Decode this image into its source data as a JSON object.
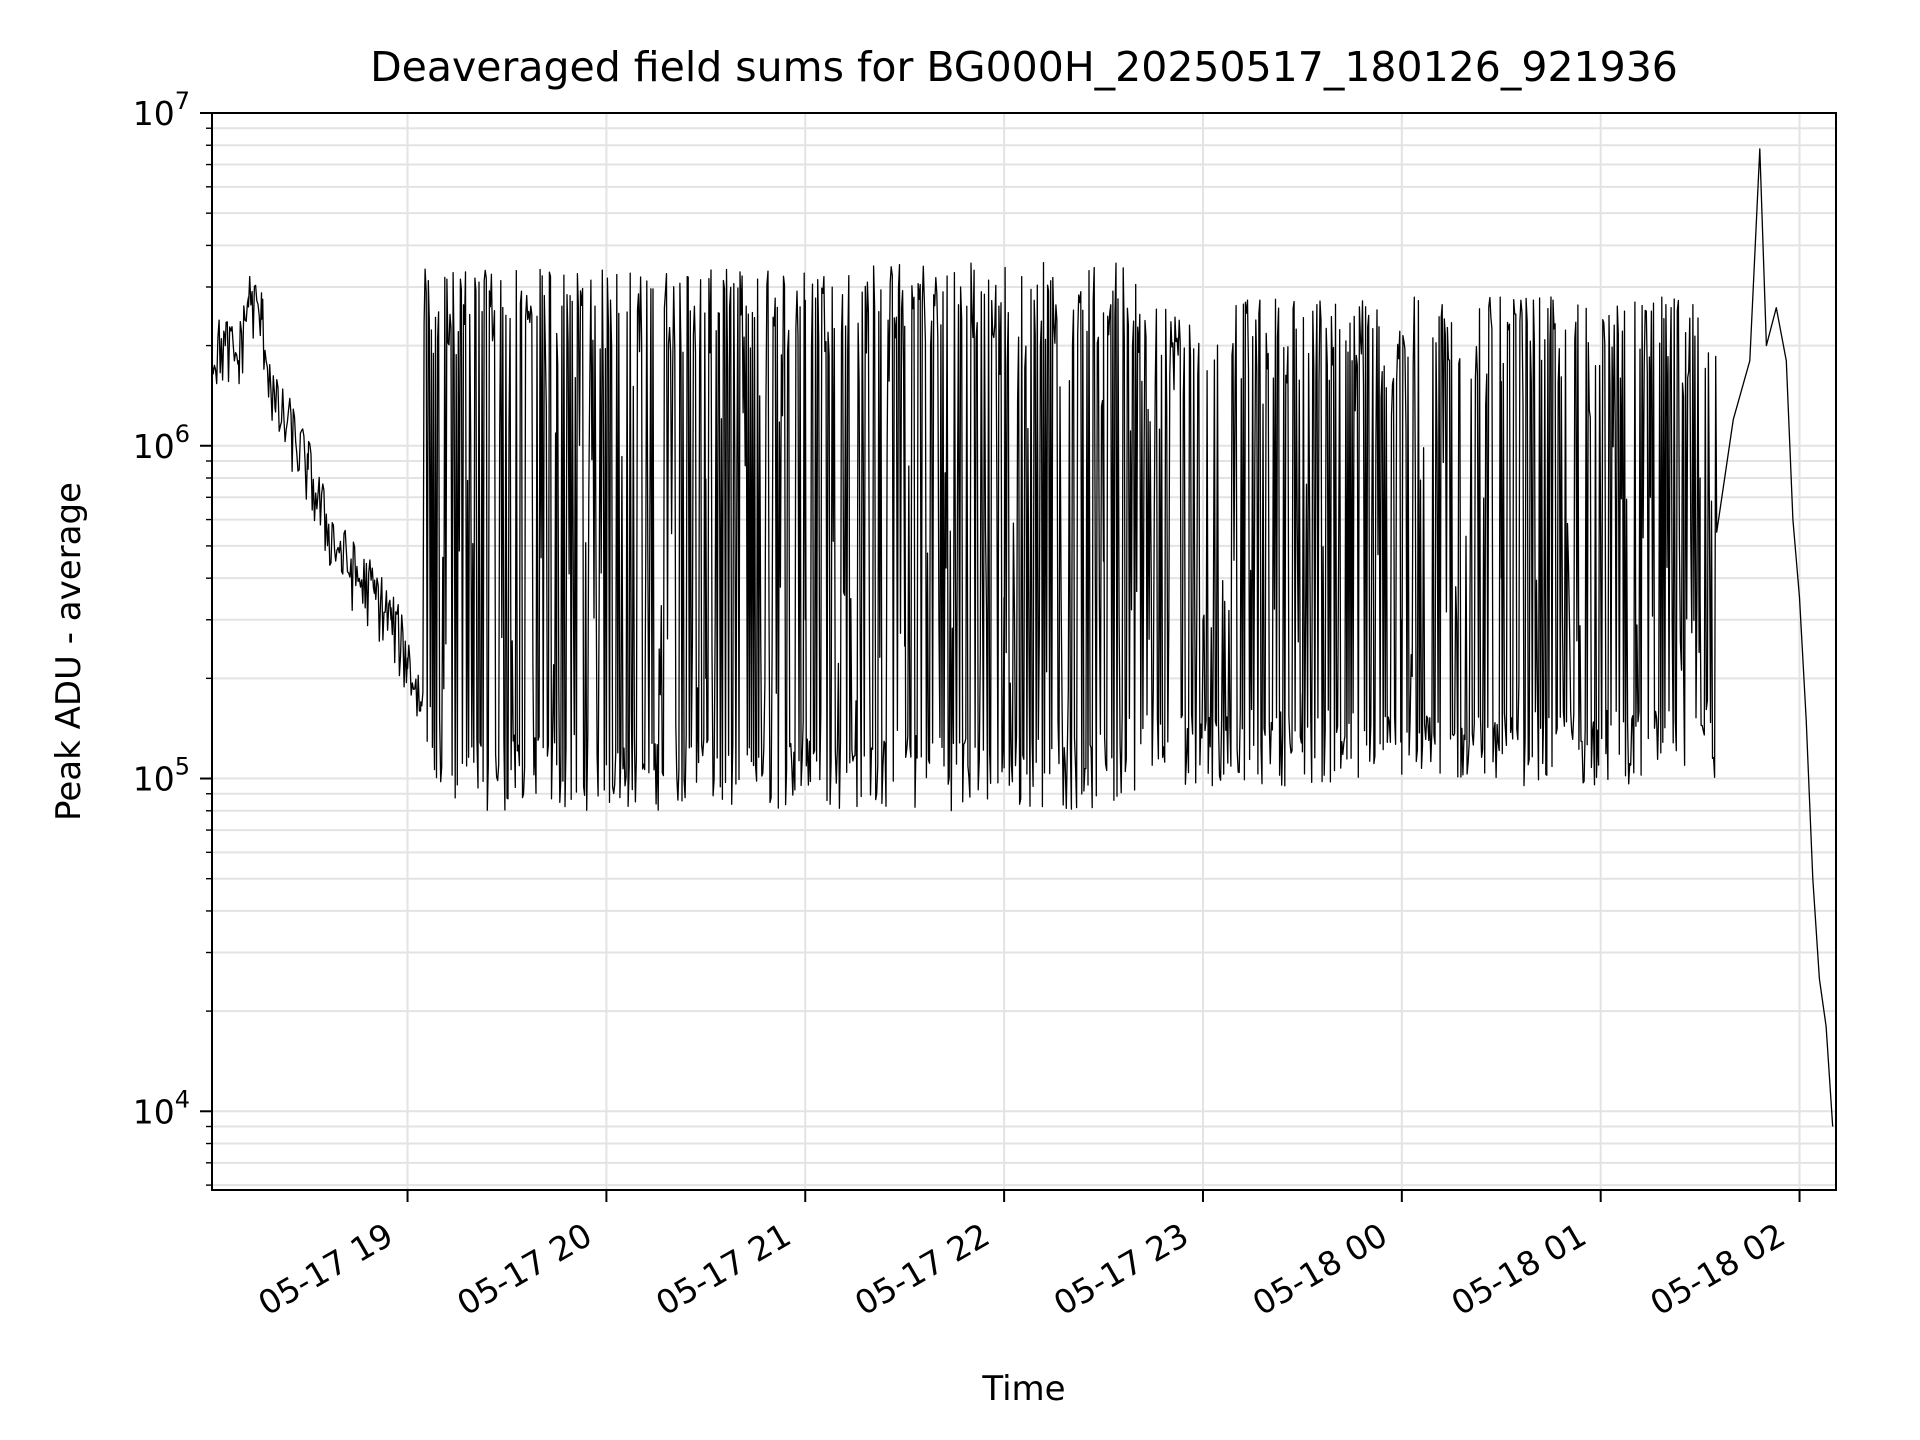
{
  "chart_data": {
    "type": "line",
    "title": "Deaveraged field sums for BG000H_20250517_180126_921936",
    "xlabel": "Time",
    "ylabel": "Peak ADU - average",
    "yscale": "log",
    "ylim": [
      5800,
      10000000
    ],
    "xlim": [
      "2025-05-17 18:01",
      "2025-05-18 02:11"
    ],
    "grid": true,
    "line_color": "#000000",
    "x_ticks": [
      {
        "value": "2025-05-17 19:00",
        "label": "05-17 19"
      },
      {
        "value": "2025-05-17 20:00",
        "label": "05-17 20"
      },
      {
        "value": "2025-05-17 21:00",
        "label": "05-17 21"
      },
      {
        "value": "2025-05-17 22:00",
        "label": "05-17 22"
      },
      {
        "value": "2025-05-17 23:00",
        "label": "05-17 23"
      },
      {
        "value": "2025-05-18 00:00",
        "label": "05-18 00"
      },
      {
        "value": "2025-05-18 01:00",
        "label": "05-18 01"
      },
      {
        "value": "2025-05-18 02:00",
        "label": "05-18 02"
      }
    ],
    "y_ticks": [
      {
        "value": 10000,
        "base": "10",
        "exp": "4"
      },
      {
        "value": 100000,
        "base": "10",
        "exp": "5"
      },
      {
        "value": 1000000,
        "base": "10",
        "exp": "6"
      },
      {
        "value": 10000000,
        "base": "10",
        "exp": "7"
      }
    ],
    "series": [
      {
        "points": [
          [
            "2025-05-17 18:01",
            1900000
          ],
          [
            "2025-05-17 18:05",
            2000000
          ],
          [
            "2025-05-17 18:09",
            1800000
          ],
          [
            "2025-05-17 18:12",
            2800000
          ],
          [
            "2025-05-17 18:16",
            2400000
          ],
          [
            "2025-05-17 18:20",
            1300000
          ],
          [
            "2025-05-17 18:25",
            1100000
          ],
          [
            "2025-05-17 18:30",
            850000
          ],
          [
            "2025-05-17 18:35",
            600000
          ],
          [
            "2025-05-17 18:40",
            470000
          ],
          [
            "2025-05-17 18:45",
            400000
          ],
          [
            "2025-05-17 18:50",
            360000
          ],
          [
            "2025-05-17 18:55",
            300000
          ],
          [
            "2025-05-17 19:00",
            230000
          ],
          [
            "2025-05-17 19:04",
            170000
          ],
          [
            "2025-05-17 19:08",
            140000
          ],
          [
            "2025-05-17 19:15",
            130000
          ],
          [
            "2025-05-17 19:30",
            120000
          ],
          [
            "2025-05-17 19:45",
            110000
          ],
          [
            "2025-05-17 20:00",
            110000
          ],
          [
            "2025-05-17 20:30",
            200000
          ],
          [
            "2025-05-17 21:00",
            300000
          ],
          [
            "2025-05-17 21:30",
            250000
          ],
          [
            "2025-05-17 22:00",
            350000
          ],
          [
            "2025-05-17 22:30",
            450000
          ],
          [
            "2025-05-17 23:00",
            250000
          ],
          [
            "2025-05-17 23:30",
            180000
          ],
          [
            "2025-05-18 00:00",
            300000
          ],
          [
            "2025-05-18 00:30",
            400000
          ],
          [
            "2025-05-18 01:00",
            500000
          ],
          [
            "2025-05-18 01:15",
            700000
          ],
          [
            "2025-05-18 01:20",
            1200000
          ],
          [
            "2025-05-18 01:25",
            1400000
          ],
          [
            "2025-05-18 01:30",
            800000
          ],
          [
            "2025-05-18 01:35",
            550000
          ],
          [
            "2025-05-18 01:40",
            1200000
          ],
          [
            "2025-05-18 01:45",
            1800000
          ],
          [
            "2025-05-18 01:48",
            7800000
          ],
          [
            "2025-05-18 01:50",
            2000000
          ],
          [
            "2025-05-18 01:53",
            2600000
          ],
          [
            "2025-05-18 01:56",
            1800000
          ],
          [
            "2025-05-18 01:58",
            600000
          ],
          [
            "2025-05-18 02:00",
            350000
          ],
          [
            "2025-05-18 02:02",
            150000
          ],
          [
            "2025-05-18 02:04",
            50000
          ],
          [
            "2025-05-18 02:06",
            25000
          ],
          [
            "2025-05-18 02:08",
            18000
          ],
          [
            "2025-05-18 02:10",
            9000
          ]
        ],
        "oscillation_envelope": {
          "segments": [
            [
              "2025-05-17 19:05",
              "2025-05-17 21:20",
              80000,
              3400000
            ],
            [
              "2025-05-17 21:20",
              "2025-05-17 22:40",
              80000,
              3600000
            ],
            [
              "2025-05-17 22:40",
              "2025-05-18 01:35",
              95000,
              2800000
            ]
          ]
        }
      }
    ]
  }
}
